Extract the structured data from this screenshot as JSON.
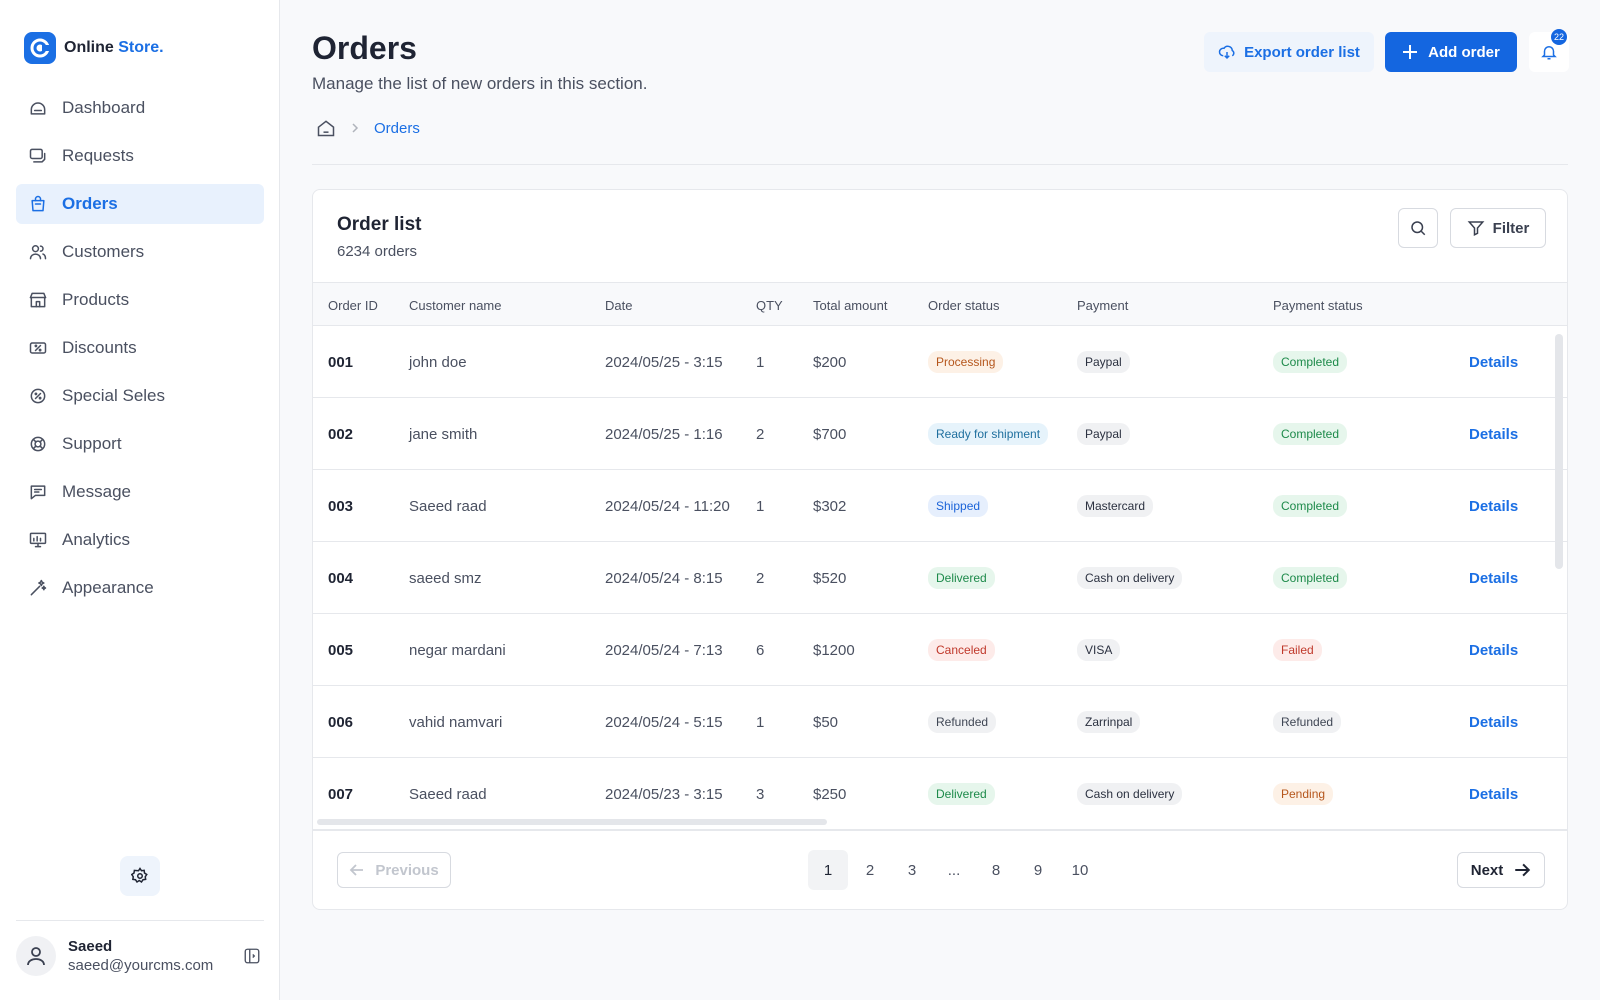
{
  "brand": {
    "name": "Online",
    "accent": "Store."
  },
  "sidebar": {
    "items": [
      {
        "label": "Dashboard",
        "icon": "dashboard-icon"
      },
      {
        "label": "Requests",
        "icon": "requests-icon"
      },
      {
        "label": "Orders",
        "icon": "orders-icon",
        "active": true
      },
      {
        "label": "Customers",
        "icon": "customers-icon"
      },
      {
        "label": "Products",
        "icon": "products-icon"
      },
      {
        "label": "Discounts",
        "icon": "discounts-icon"
      },
      {
        "label": "Special Seles",
        "icon": "special-sales-icon"
      },
      {
        "label": "Support",
        "icon": "support-icon"
      },
      {
        "label": "Message",
        "icon": "message-icon"
      },
      {
        "label": "Analytics",
        "icon": "analytics-icon"
      },
      {
        "label": "Appearance",
        "icon": "appearance-icon"
      }
    ],
    "user": {
      "name": "Saeed",
      "email": "saeed@yourcms.com"
    }
  },
  "header": {
    "title": "Orders",
    "subtitle": "Manage the list of new orders in this section.",
    "export_label": "Export order list",
    "add_label": "Add order",
    "notification_count": "22"
  },
  "breadcrumb": {
    "current": "Orders"
  },
  "order_list": {
    "title": "Order list",
    "count": "6234 orders",
    "filter_label": "Filter",
    "columns": [
      "Order ID",
      "Customer name",
      "Date",
      "QTY",
      "Total amount",
      "Order status",
      "Payment",
      "Payment status"
    ],
    "details_label": "Details",
    "rows": [
      {
        "id": "001",
        "customer": "john doe",
        "date": "2024/05/25 - 3:15",
        "qty": "1",
        "total": "$200",
        "order_status": "Processing",
        "payment": "Paypal",
        "payment_status": "Completed"
      },
      {
        "id": "002",
        "customer": "jane smith",
        "date": "2024/05/25 - 1:16",
        "qty": "2",
        "total": "$700",
        "order_status": "Ready for shipment",
        "payment": "Paypal",
        "payment_status": "Completed"
      },
      {
        "id": "003",
        "customer": "Saeed raad",
        "date": "2024/05/24 - 11:20",
        "qty": "1",
        "total": "$302",
        "order_status": "Shipped",
        "payment": "Mastercard",
        "payment_status": "Completed"
      },
      {
        "id": "004",
        "customer": "saeed smz",
        "date": "2024/05/24 - 8:15",
        "qty": "2",
        "total": "$520",
        "order_status": "Delivered",
        "payment": "Cash on delivery",
        "payment_status": "Completed"
      },
      {
        "id": "005",
        "customer": "negar mardani",
        "date": "2024/05/24 - 7:13",
        "qty": "6",
        "total": "$1200",
        "order_status": "Canceled",
        "payment": "VISA",
        "payment_status": "Failed"
      },
      {
        "id": "006",
        "customer": "vahid namvari",
        "date": "2024/05/24 - 5:15",
        "qty": "1",
        "total": "$50",
        "order_status": "Refunded",
        "payment": "Zarrinpal",
        "payment_status": "Refunded"
      },
      {
        "id": "007",
        "customer": "Saeed raad",
        "date": "2024/05/23 - 3:15",
        "qty": "3",
        "total": "$250",
        "order_status": "Delivered",
        "payment": "Cash on delivery",
        "payment_status": "Pending"
      }
    ]
  },
  "pagination": {
    "previous_label": "Previous",
    "next_label": "Next",
    "pages": [
      "1",
      "2",
      "3",
      "...",
      "8",
      "9",
      "10"
    ],
    "current": "1"
  },
  "status_colors": {
    "Processing": {
      "bg": "#fdf1e6",
      "fg": "#b5561c"
    },
    "Ready for shipment": {
      "bg": "#e6f3fb",
      "fg": "#1f6f9e"
    },
    "Shipped": {
      "bg": "#e6effd",
      "fg": "#1b63d8"
    },
    "Delivered": {
      "bg": "#e6f6ec",
      "fg": "#1d8a4a"
    },
    "Canceled": {
      "bg": "#fdebe9",
      "fg": "#c0392b"
    },
    "Refunded": {
      "bg": "#f0f1f3",
      "fg": "#3f4654"
    },
    "Completed": {
      "bg": "#e6f6ec",
      "fg": "#1d8a4a"
    },
    "Failed": {
      "bg": "#fdebe9",
      "fg": "#c0392b"
    },
    "Pending": {
      "bg": "#fdf1e6",
      "fg": "#b5561c"
    },
    "payment": {
      "bg": "#f0f1f3",
      "fg": "#2b3140"
    }
  },
  "colors": {
    "accent": "#1b6fe4",
    "primary_button": "#1466e0"
  }
}
